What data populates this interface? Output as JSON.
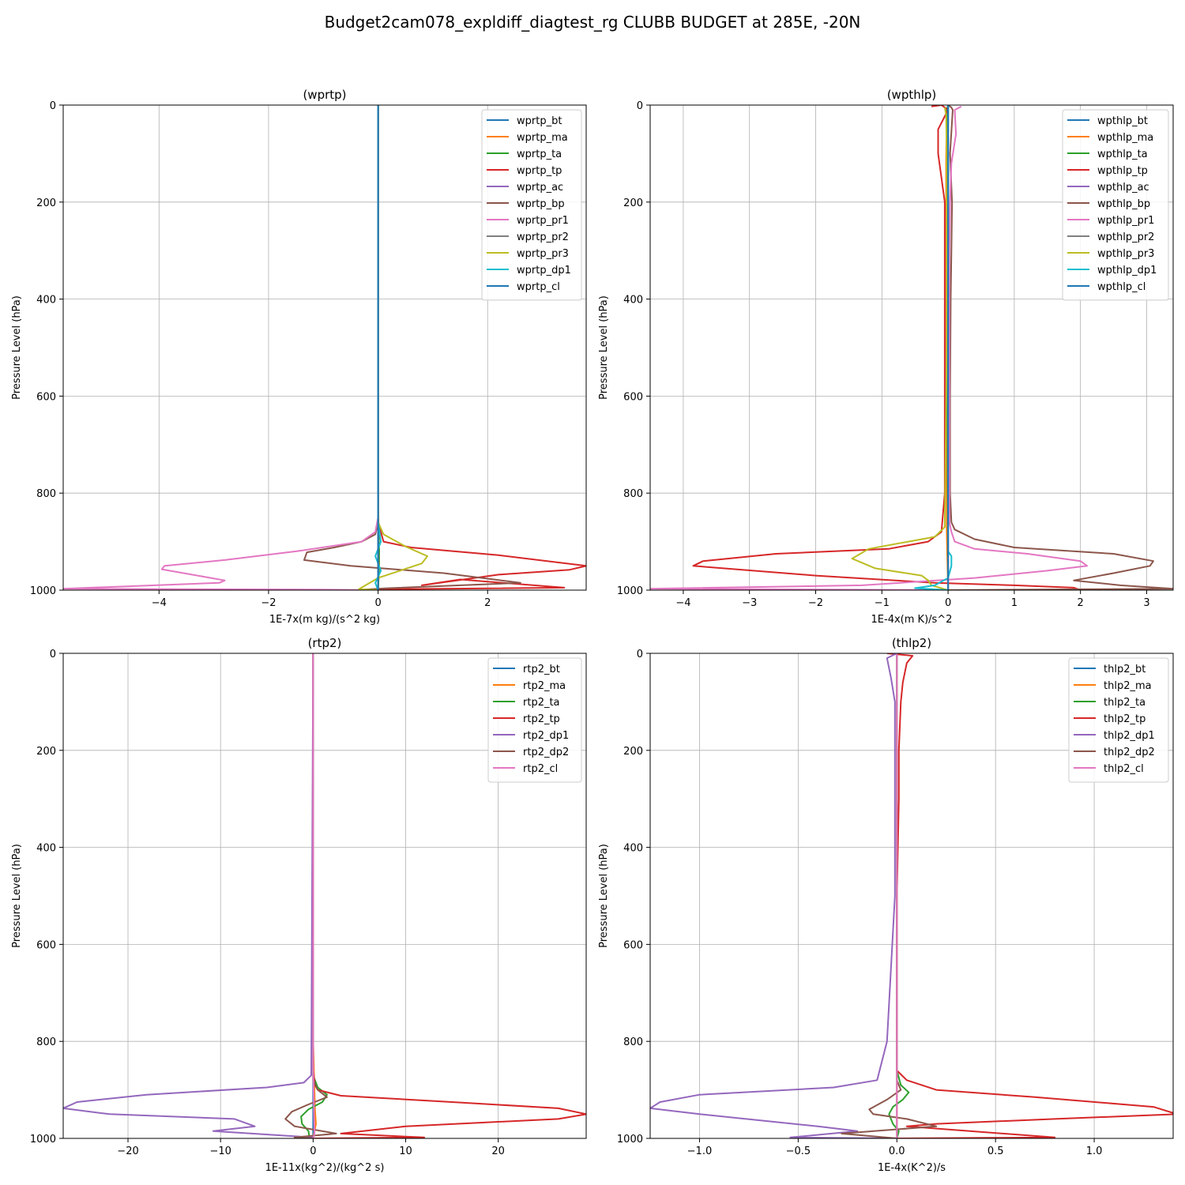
{
  "figure": {
    "title": "Budget2cam078_expldiff_diagtest_rg CLUBB BUDGET at 285E, -20N"
  },
  "chart_data": [
    {
      "type": "line",
      "title": "(wprtp)",
      "xlabel": "1E-7x(m kg)/(s^2 kg)",
      "ylabel": "Pressure Level (hPa)",
      "xlim": [
        -5.75,
        3.8
      ],
      "ylim": [
        1000,
        0
      ],
      "xticks": [
        -4,
        -2,
        0,
        2
      ],
      "yticks": [
        0,
        200,
        400,
        600,
        800,
        1000
      ],
      "grid": true,
      "legend": "top-right",
      "series": [
        {
          "name": "wprtp_bt",
          "color": "#1f77b4",
          "x": [
            0,
            0,
            0
          ],
          "y": [
            0,
            500,
            1000
          ]
        },
        {
          "name": "wprtp_ma",
          "color": "#ff7f0e",
          "x": [
            0,
            0,
            0.02,
            0
          ],
          "y": [
            0,
            800,
            950,
            1000
          ]
        },
        {
          "name": "wprtp_ta",
          "color": "#2ca02c",
          "x": [
            0,
            0,
            0.02,
            0.01,
            0
          ],
          "y": [
            0,
            850,
            920,
            970,
            1000
          ]
        },
        {
          "name": "wprtp_tp",
          "color": "#d62728",
          "x": [
            0,
            0,
            0.1,
            0.6,
            2.2,
            3.8,
            3.5,
            2.2,
            0.8,
            1.5,
            3.4,
            0.2,
            0
          ],
          "y": [
            0,
            860,
            900,
            912,
            928,
            950,
            958,
            968,
            990,
            978,
            995,
            998,
            1000
          ]
        },
        {
          "name": "wprtp_ac",
          "color": "#9467bd",
          "x": [
            0,
            0,
            0
          ],
          "y": [
            0,
            800,
            1000
          ]
        },
        {
          "name": "wprtp_bp",
          "color": "#8c564b",
          "x": [
            0,
            0,
            -0.05,
            -0.3,
            -0.8,
            -1.3,
            -1.35,
            -0.5,
            1.2,
            2.6,
            0.2,
            -0.3,
            0
          ],
          "y": [
            0,
            860,
            885,
            900,
            912,
            922,
            938,
            950,
            965,
            985,
            996,
            999,
            1000
          ]
        },
        {
          "name": "wprtp_pr1",
          "color": "#e377c2",
          "x": [
            0,
            0,
            -0.05,
            -0.3,
            -1.5,
            -2.8,
            -3.9,
            -3.95,
            -2.8,
            -2.9,
            -5.75,
            -1.0,
            0
          ],
          "y": [
            0,
            850,
            880,
            900,
            920,
            938,
            950,
            957,
            980,
            985,
            997,
            999,
            1000
          ]
        },
        {
          "name": "wprtp_pr2",
          "color": "#7f7f7f",
          "x": [
            0,
            0,
            0
          ],
          "y": [
            0,
            800,
            1000
          ]
        },
        {
          "name": "wprtp_pr3",
          "color": "#bcbd22",
          "x": [
            0,
            0,
            0.1,
            0.5,
            0.9,
            0.8,
            0.4,
            0,
            -0.35,
            0
          ],
          "y": [
            0,
            860,
            885,
            910,
            930,
            945,
            960,
            975,
            998,
            1000
          ]
        },
        {
          "name": "wprtp_dp1",
          "color": "#17becf",
          "x": [
            0,
            0,
            0.05,
            -0.05,
            0.05,
            -0.05,
            0
          ],
          "y": [
            0,
            860,
            900,
            930,
            960,
            985,
            1000
          ]
        },
        {
          "name": "wprtp_cl",
          "color": "#1f77b4",
          "x": [
            0,
            0,
            0
          ],
          "y": [
            0,
            500,
            1000
          ]
        }
      ]
    },
    {
      "type": "line",
      "title": "(wpthlp)",
      "xlabel": "1E-4x(m K)/s^2",
      "ylabel": "Pressure Level (hPa)",
      "xlim": [
        -4.5,
        3.4
      ],
      "ylim": [
        1000,
        0
      ],
      "xticks": [
        -4,
        -3,
        -2,
        -1,
        0,
        1,
        2,
        3
      ],
      "yticks": [
        0,
        200,
        400,
        600,
        800,
        1000
      ],
      "grid": true,
      "legend": "top-right",
      "series": [
        {
          "name": "wpthlp_bt",
          "color": "#1f77b4",
          "x": [
            0,
            0,
            0
          ],
          "y": [
            0,
            500,
            1000
          ]
        },
        {
          "name": "wpthlp_ma",
          "color": "#ff7f0e",
          "x": [
            0,
            -0.02,
            -0.03,
            -0.02,
            0
          ],
          "y": [
            0,
            20,
            120,
            880,
            1000
          ]
        },
        {
          "name": "wpthlp_ta",
          "color": "#2ca02c",
          "x": [
            0,
            -0.02,
            -0.01,
            0
          ],
          "y": [
            0,
            10,
            500,
            1000
          ]
        },
        {
          "name": "wpthlp_tp",
          "color": "#d62728",
          "x": [
            -0.25,
            -0.1,
            0,
            -0.15,
            -0.15,
            -0.05,
            -0.05,
            -0.05,
            -0.05,
            -0.1,
            -0.3,
            -0.9,
            -2.6,
            -3.7,
            -3.85,
            -2.0,
            -0.2,
            1.0,
            1.9,
            2.0,
            0
          ],
          "y": [
            3,
            0,
            10,
            50,
            100,
            200,
            300,
            500,
            800,
            880,
            900,
            915,
            925,
            940,
            950,
            970,
            985,
            990,
            995,
            1000,
            1000
          ]
        },
        {
          "name": "wpthlp_ac",
          "color": "#9467bd",
          "x": [
            0,
            0,
            0
          ],
          "y": [
            0,
            500,
            1000
          ]
        },
        {
          "name": "wpthlp_bp",
          "color": "#8c564b",
          "x": [
            0,
            0.05,
            0.07,
            0.03,
            0.06,
            0.05,
            0.04,
            0.03,
            0.03,
            0.05,
            0.1,
            0.4,
            1.0,
            2.5,
            3.1,
            3.05,
            2.5,
            1.9,
            2.6,
            3.4,
            0
          ],
          "y": [
            0,
            5,
            10,
            100,
            200,
            300,
            400,
            600,
            800,
            860,
            875,
            895,
            912,
            925,
            940,
            950,
            965,
            980,
            990,
            997,
            1000
          ]
        },
        {
          "name": "wpthlp_pr1",
          "color": "#e377c2",
          "x": [
            0.2,
            0.1,
            0.12,
            0.05,
            0.03,
            0.02,
            0.02,
            0.02,
            0.02,
            0.05,
            0.1,
            0.4,
            1.2,
            2.0,
            2.1,
            1.5,
            0.4,
            -1.3,
            -4.5,
            0
          ],
          "y": [
            3,
            10,
            60,
            120,
            200,
            300,
            500,
            800,
            860,
            880,
            900,
            915,
            925,
            940,
            950,
            960,
            975,
            990,
            997,
            1000
          ]
        },
        {
          "name": "wpthlp_pr2",
          "color": "#7f7f7f",
          "x": [
            0,
            0,
            0
          ],
          "y": [
            0,
            500,
            1000
          ]
        },
        {
          "name": "wpthlp_pr3",
          "color": "#bcbd22",
          "x": [
            -0.05,
            -0.03,
            -0.02,
            -0.02,
            -0.05,
            -0.2,
            -0.6,
            -1.2,
            -1.45,
            -1.1,
            -0.4,
            -0.3,
            -0.25,
            0
          ],
          "y": [
            5,
            20,
            100,
            500,
            870,
            890,
            900,
            915,
            935,
            955,
            970,
            980,
            990,
            1000
          ]
        },
        {
          "name": "wpthlp_dp1",
          "color": "#17becf",
          "x": [
            0,
            0,
            0,
            0,
            0.05,
            0.05,
            0,
            -0.2,
            -0.5,
            0
          ],
          "y": [
            0,
            800,
            900,
            920,
            930,
            950,
            975,
            990,
            996,
            1000
          ]
        },
        {
          "name": "wpthlp_cl",
          "color": "#1f77b4",
          "x": [
            0,
            0,
            0
          ],
          "y": [
            0,
            500,
            1000
          ]
        }
      ]
    },
    {
      "type": "line",
      "title": "(rtp2)",
      "xlabel": "1E-11x(kg^2)/(kg^2 s)",
      "ylabel": "Pressure Level (hPa)",
      "xlim": [
        -27,
        29.5
      ],
      "ylim": [
        1000,
        0
      ],
      "xticks": [
        -20,
        -10,
        0,
        10,
        20
      ],
      "yticks": [
        0,
        200,
        400,
        600,
        800,
        1000
      ],
      "grid": true,
      "legend": "top-right",
      "series": [
        {
          "name": "rtp2_bt",
          "color": "#1f77b4",
          "x": [
            0,
            0,
            0
          ],
          "y": [
            0,
            500,
            1000
          ]
        },
        {
          "name": "rtp2_ma",
          "color": "#ff7f0e",
          "x": [
            0,
            0,
            0.2,
            0.3,
            0
          ],
          "y": [
            0,
            800,
            940,
            970,
            1000
          ]
        },
        {
          "name": "rtp2_ta",
          "color": "#2ca02c",
          "x": [
            0,
            0,
            0.5,
            1.5,
            1.0,
            -0.5,
            -1.3,
            -1.2,
            -0.5,
            -0.4,
            0
          ],
          "y": [
            0,
            870,
            895,
            910,
            925,
            940,
            955,
            970,
            985,
            998,
            1000
          ]
        },
        {
          "name": "rtp2_tp",
          "color": "#d62728",
          "x": [
            0,
            0,
            0.2,
            0.5,
            3.0,
            15.0,
            26.5,
            29.5,
            26.5,
            10.0,
            3.0,
            12.0,
            0.5,
            0
          ],
          "y": [
            0,
            860,
            890,
            900,
            912,
            925,
            938,
            950,
            960,
            975,
            990,
            998,
            1000,
            1000
          ]
        },
        {
          "name": "rtp2_dp1",
          "color": "#9467bd",
          "x": [
            0,
            -0.2,
            -1.0,
            -5.0,
            -18.0,
            -25.5,
            -27.0,
            -22.0,
            -8.5,
            -6.3,
            -10.8,
            0
          ],
          "y": [
            0,
            870,
            885,
            895,
            910,
            925,
            938,
            950,
            960,
            975,
            985,
            998
          ]
        },
        {
          "name": "rtp2_dp2",
          "color": "#8c564b",
          "x": [
            0,
            0,
            0.5,
            1.5,
            -0.5,
            -2.3,
            -3.0,
            -2.0,
            2.5,
            -2.0,
            0
          ],
          "y": [
            0,
            880,
            900,
            915,
            930,
            945,
            960,
            975,
            990,
            998,
            1000
          ]
        },
        {
          "name": "rtp2_cl",
          "color": "#e377c2",
          "x": [
            0,
            0,
            0.1,
            0.15,
            0
          ],
          "y": [
            0,
            850,
            950,
            990,
            1000
          ]
        }
      ]
    },
    {
      "type": "line",
      "title": "(thlp2)",
      "xlabel": "1E-4x(K^2)/s",
      "ylabel": "Pressure Level (hPa)",
      "xlim": [
        -1.25,
        1.4
      ],
      "ylim": [
        1000,
        0
      ],
      "xticks": [
        -1.0,
        -0.5,
        0.0,
        0.5,
        1.0
      ],
      "yticks": [
        0,
        200,
        400,
        600,
        800,
        1000
      ],
      "grid": true,
      "legend": "top-right",
      "series": [
        {
          "name": "thlp2_bt",
          "color": "#1f77b4",
          "x": [
            0,
            0,
            0
          ],
          "y": [
            0,
            500,
            1000
          ]
        },
        {
          "name": "thlp2_ma",
          "color": "#ff7f0e",
          "x": [
            0,
            0,
            0
          ],
          "y": [
            0,
            500,
            1000
          ]
        },
        {
          "name": "thlp2_ta",
          "color": "#2ca02c",
          "x": [
            0,
            0,
            0.02,
            0.06,
            0.03,
            -0.02,
            -0.04,
            -0.02,
            0.01,
            0
          ],
          "y": [
            0,
            860,
            890,
            905,
            920,
            935,
            950,
            970,
            985,
            1000
          ]
        },
        {
          "name": "thlp2_tp",
          "color": "#d62728",
          "x": [
            -0.05,
            0.08,
            0.05,
            0.03,
            0.02,
            0.01,
            0.01,
            0,
            0,
            0,
            0.05,
            0.2,
            0.7,
            1.3,
            1.42,
            0.8,
            0.2,
            0.05,
            0.8,
            0
          ],
          "y": [
            0,
            5,
            20,
            60,
            100,
            200,
            300,
            500,
            800,
            860,
            880,
            900,
            915,
            935,
            950,
            960,
            970,
            975,
            998,
            1000
          ]
        },
        {
          "name": "thlp2_dp1",
          "color": "#9467bd",
          "x": [
            0,
            -0.05,
            -0.03,
            -0.01,
            -0.01,
            -0.01,
            -0.05,
            -0.1,
            -0.32,
            -1.0,
            -1.2,
            -1.25,
            -1.0,
            -0.4,
            -0.2,
            -0.54,
            0
          ],
          "y": [
            0,
            10,
            50,
            100,
            200,
            500,
            800,
            880,
            895,
            910,
            925,
            938,
            950,
            975,
            985,
            998,
            1000
          ]
        },
        {
          "name": "thlp2_dp2",
          "color": "#8c564b",
          "x": [
            0,
            0,
            0,
            0.02,
            -0.05,
            -0.14,
            -0.12,
            0.05,
            0.2,
            -0.28,
            0
          ],
          "y": [
            0,
            800,
            880,
            900,
            920,
            940,
            950,
            960,
            975,
            990,
            1000
          ]
        },
        {
          "name": "thlp2_cl",
          "color": "#e377c2",
          "x": [
            0,
            0,
            0,
            0
          ],
          "y": [
            0,
            500,
            900,
            1000
          ]
        }
      ]
    }
  ]
}
